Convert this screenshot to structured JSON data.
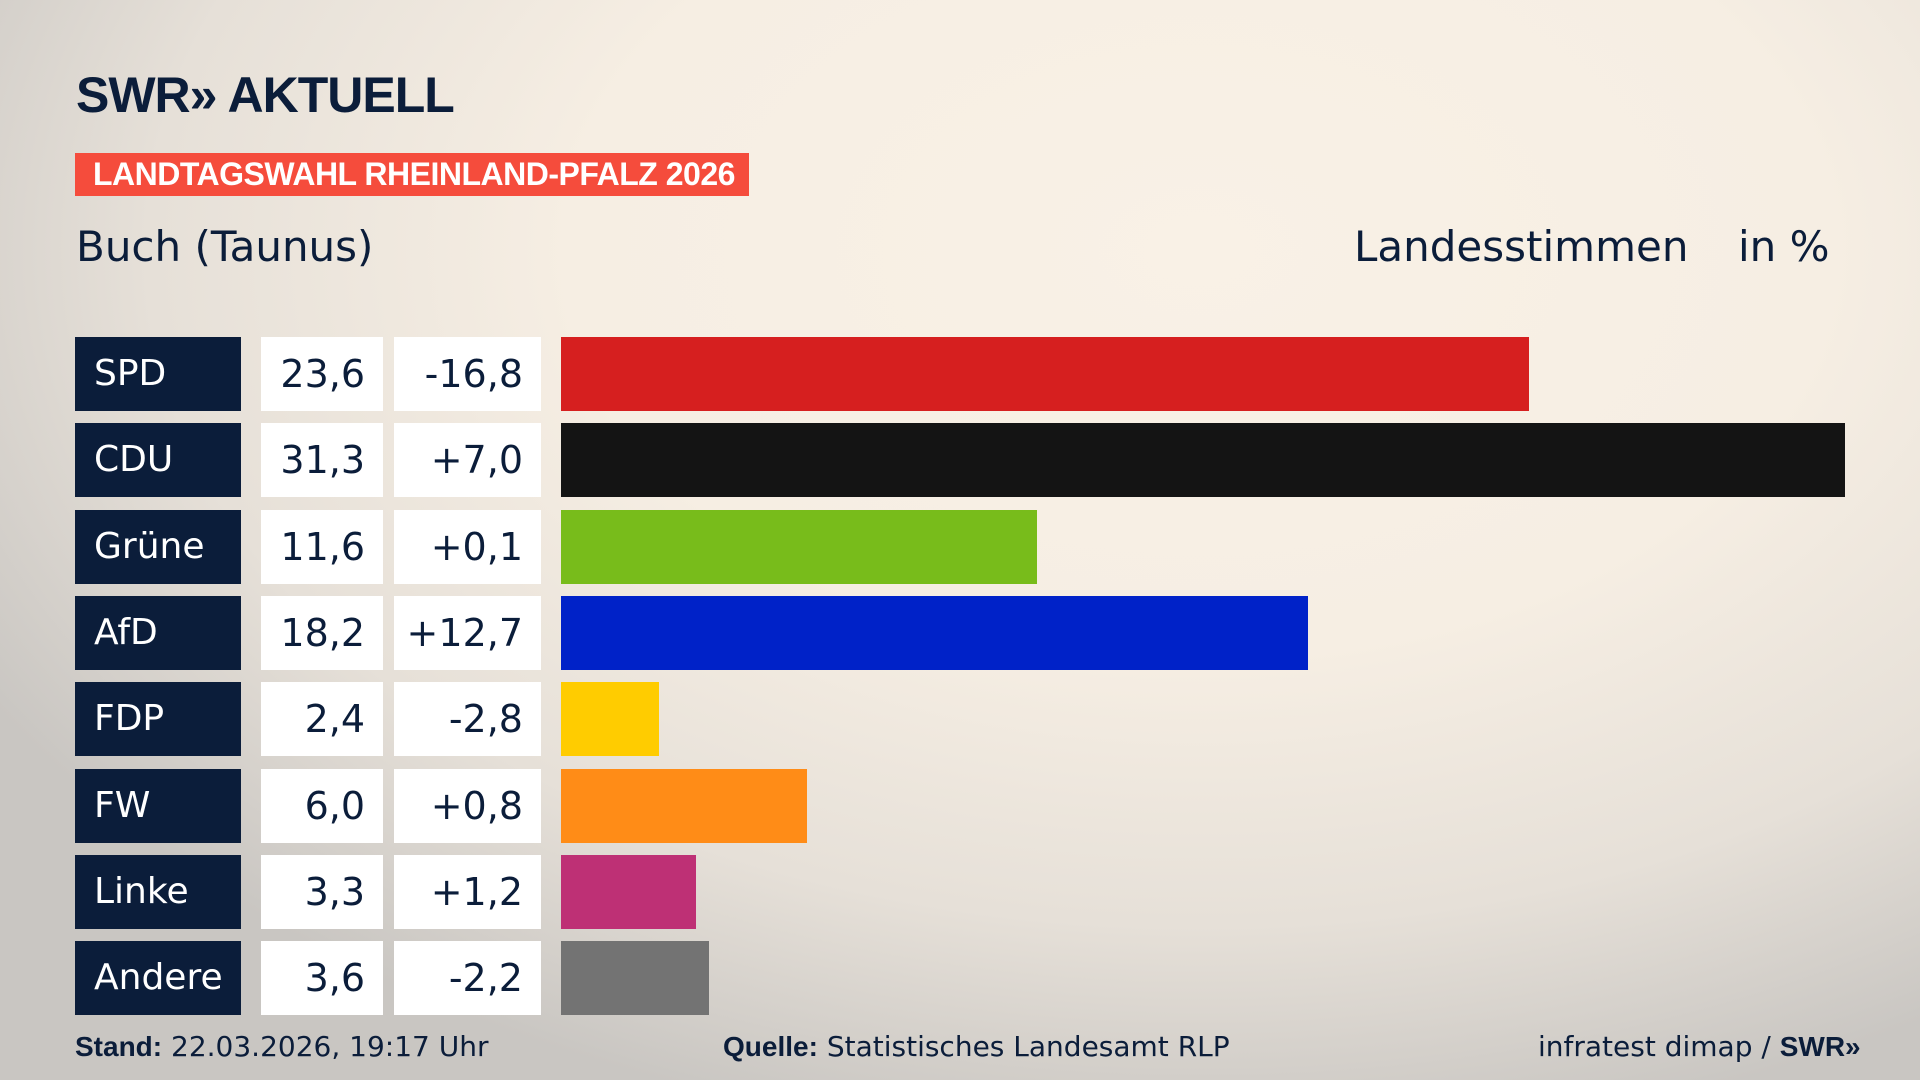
{
  "header": {
    "logo": "SWR» AKTUELL",
    "banner": "LANDTAGSWAHL RHEINLAND-PFALZ 2026",
    "subtitle": "Buch (Taunus)",
    "measure": "Landesstimmen",
    "unit": "in %"
  },
  "chart_data": {
    "type": "bar",
    "orientation": "horizontal",
    "xlim": [
      0,
      31.3
    ],
    "categories": [
      "SPD",
      "CDU",
      "Grüne",
      "AfD",
      "FDP",
      "FW",
      "Linke",
      "Andere"
    ],
    "values": [
      23.6,
      31.3,
      11.6,
      18.2,
      2.4,
      6.0,
      3.3,
      3.6
    ],
    "value_labels": [
      "23,6",
      "31,3",
      "11,6",
      "18,2",
      "2,4",
      "6,0",
      "3,3",
      "3,6"
    ],
    "change_labels": [
      "-16,8",
      "+7,0",
      "+0,1",
      "+12,7",
      "-2,8",
      "+0,8",
      "+1,2",
      "-2,2"
    ],
    "changes": [
      -16.8,
      7.0,
      0.1,
      12.7,
      -2.8,
      0.8,
      1.2,
      -2.2
    ],
    "colors": [
      "#d61f1f",
      "#141414",
      "#78bc1b",
      "#0022c8",
      "#ffcc00",
      "#ff8c17",
      "#be3075",
      "#737373"
    ]
  },
  "footer": {
    "stand_label": "Stand:",
    "stand_value": "22.03.2026, 19:17 Uhr",
    "source_label": "Quelle:",
    "source_value": "Statistisches Landesamt RLP",
    "credit": "infratest dimap / ",
    "credit_logo": "SWR»"
  }
}
